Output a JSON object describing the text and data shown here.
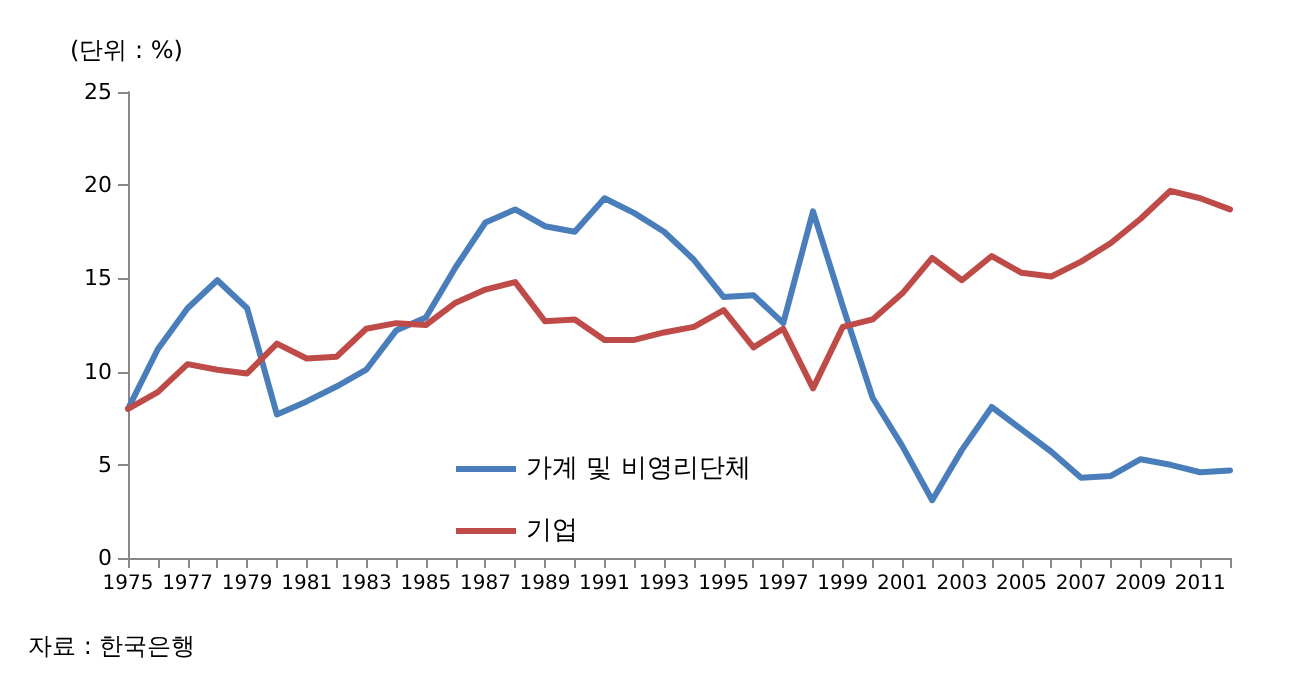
{
  "chart_data": {
    "type": "line",
    "ylabel": "(단위 : %)",
    "categories": [
      "1975",
      null,
      "1977",
      null,
      "1979",
      null,
      "1981",
      null,
      "1983",
      null,
      "1985",
      null,
      "1987",
      null,
      "1989",
      null,
      "1991",
      null,
      "1993",
      null,
      "1995",
      null,
      "1997",
      null,
      "1999",
      null,
      "2001",
      null,
      "2003",
      null,
      "2005",
      null,
      "2007",
      null,
      "2009",
      null,
      "2011",
      null
    ],
    "series": [
      {
        "name": "가계 및 비영리단체",
        "color": "#4a7ebb",
        "values": [
          8.0,
          11.2,
          13.4,
          14.9,
          13.4,
          7.7,
          8.4,
          9.2,
          10.1,
          12.2,
          12.9,
          15.6,
          18.0,
          18.7,
          17.8,
          17.5,
          19.3,
          18.5,
          17.5,
          16.0,
          14.0,
          14.1,
          12.6,
          18.6,
          13.5,
          8.6,
          6.0,
          3.1,
          5.8,
          8.1,
          6.9,
          5.7,
          4.3,
          4.4,
          5.3,
          5.0,
          4.6,
          4.7
        ]
      },
      {
        "name": "기업",
        "color": "#be4b48",
        "values": [
          8.0,
          8.9,
          10.4,
          10.1,
          9.9,
          11.5,
          10.7,
          10.8,
          12.3,
          12.6,
          12.5,
          13.7,
          14.4,
          14.8,
          12.7,
          12.8,
          11.7,
          11.7,
          12.1,
          12.4,
          13.3,
          11.3,
          12.3,
          9.1,
          12.4,
          12.8,
          14.2,
          16.1,
          14.9,
          16.2,
          15.3,
          15.1,
          15.9,
          16.9,
          18.2,
          19.7,
          19.3,
          18.7
        ]
      }
    ],
    "ylim": [
      0,
      25
    ],
    "yticks": [
      0,
      5,
      10,
      15,
      20,
      25
    ],
    "grid": false,
    "legend": "bottom left",
    "marker": "none",
    "line_style": "solid",
    "annotations": [
      "자료 : 한국은행"
    ]
  }
}
